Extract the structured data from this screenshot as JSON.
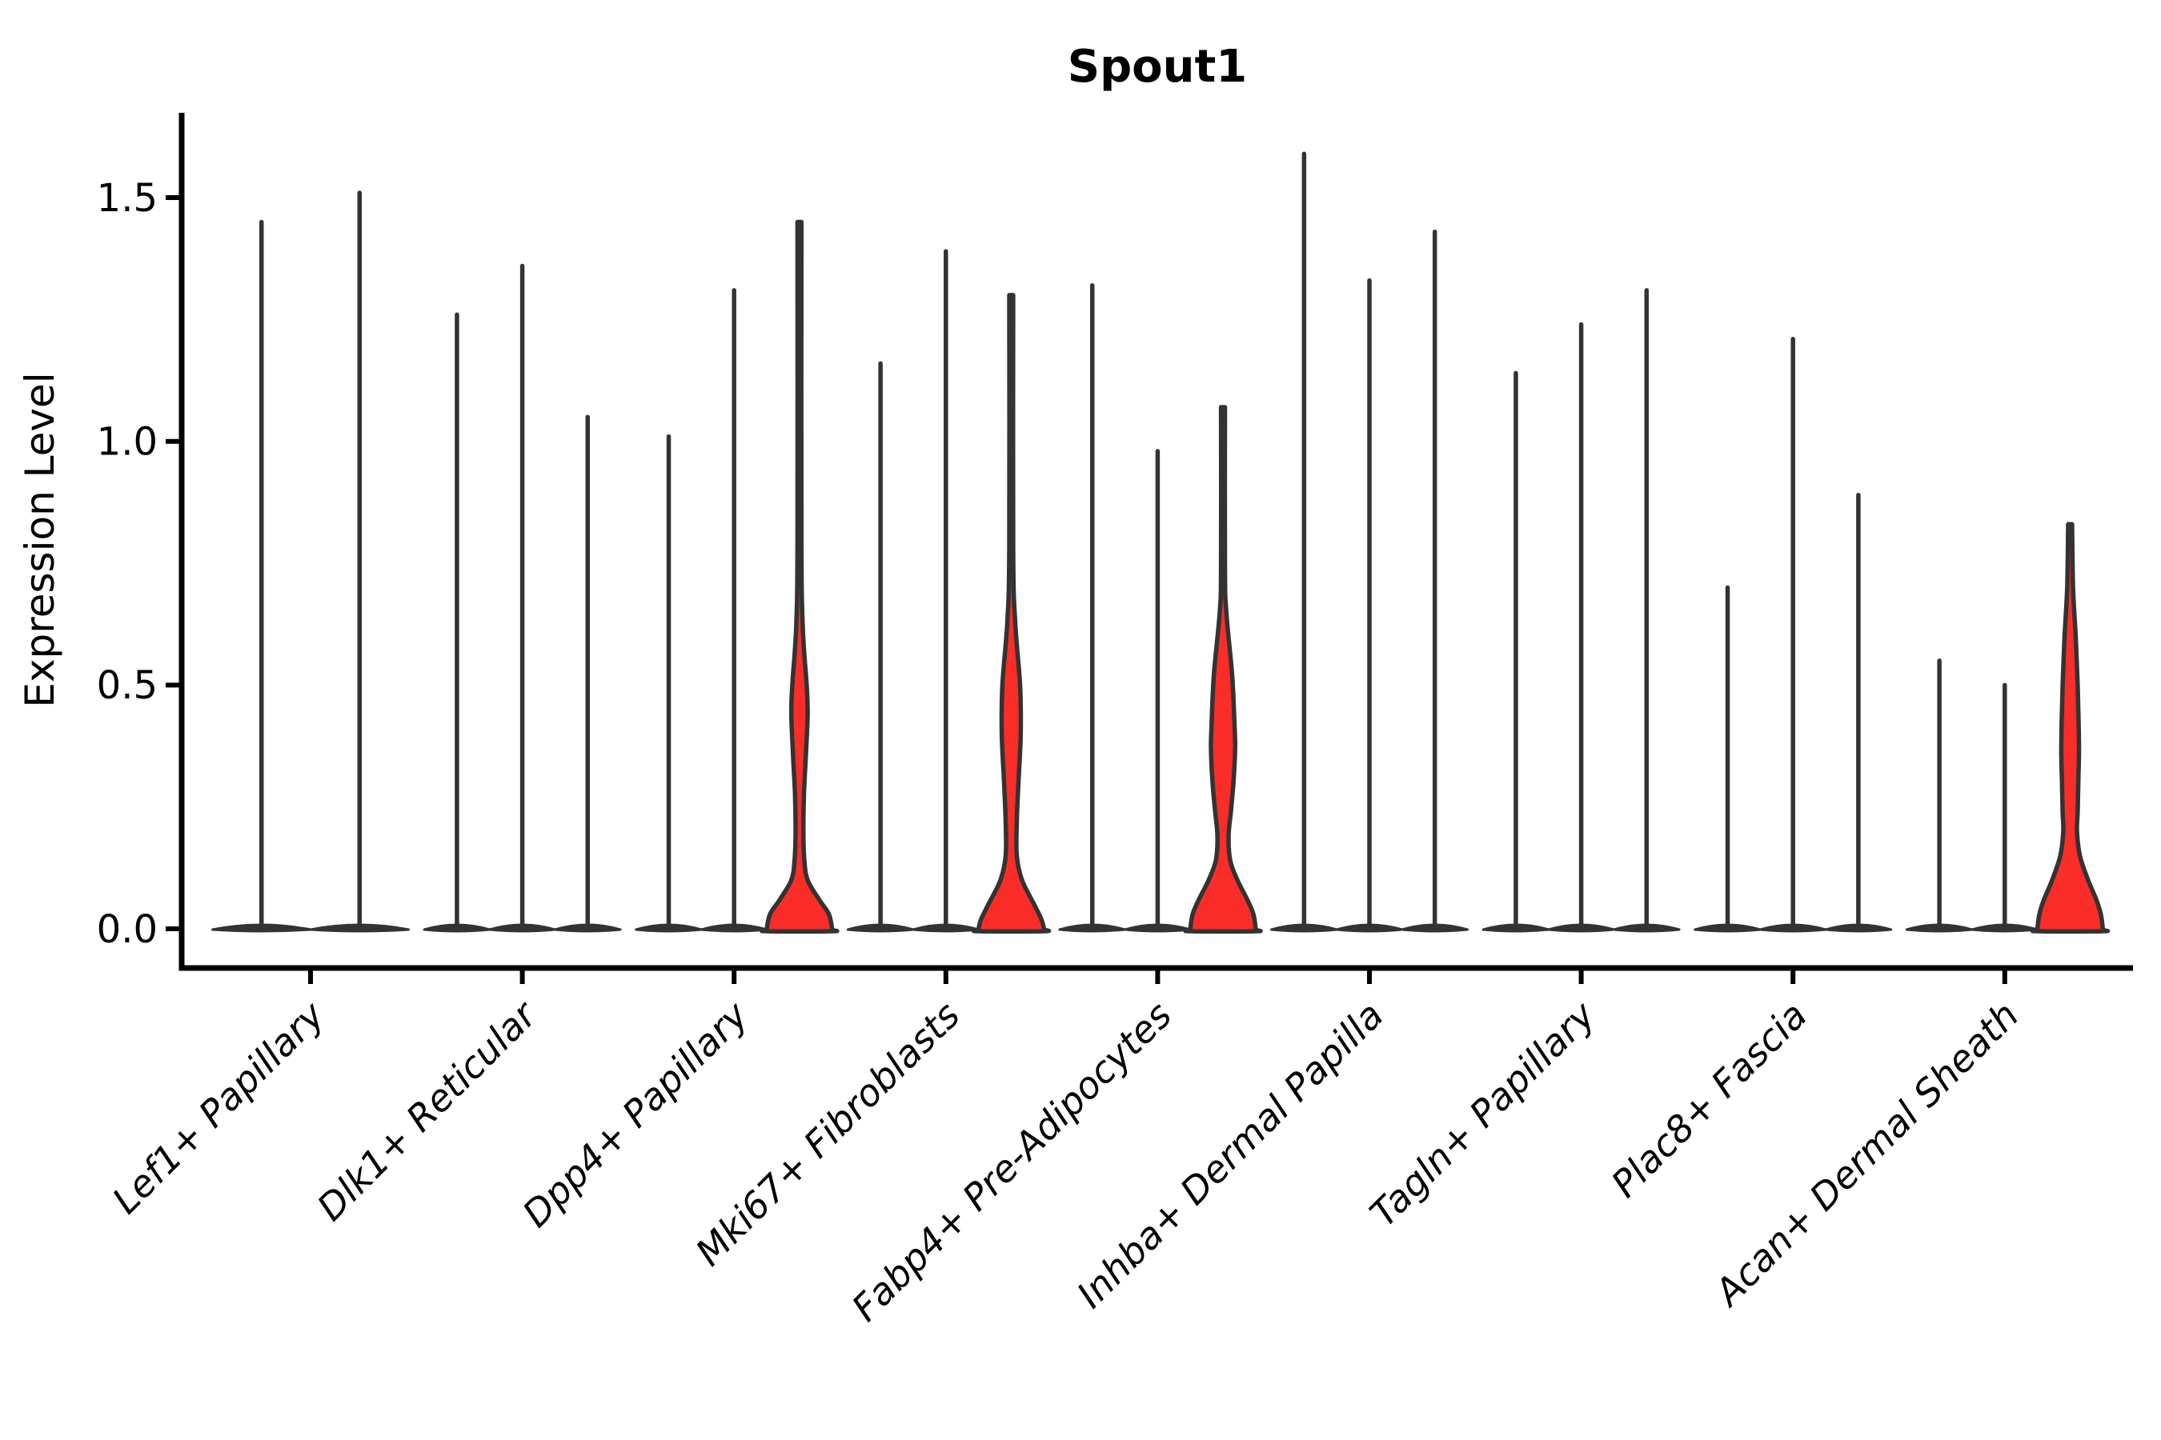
{
  "chart_data": {
    "type": "violin",
    "title": "Spout1",
    "ylabel": "Expression Level",
    "xlabel": "",
    "ylim": [
      0,
      1.674
    ],
    "yticks": [
      {
        "value": 0.0,
        "label": "0.0"
      },
      {
        "value": 0.5,
        "label": "0.5"
      },
      {
        "value": 1.0,
        "label": "1.0"
      },
      {
        "value": 1.5,
        "label": "1.5"
      }
    ],
    "grid": "off",
    "legend": "none",
    "categories": [
      "Lef1+ Papillary",
      "Dlk1+ Reticular",
      "Dpp4+ Papillary",
      "Mki67+ Fibroblasts",
      "Fabp4+ Pre-Adipocytes",
      "Inhba+ Dermal Papilla",
      "Tagln+ Papillary",
      "Plac8+ Fascia",
      "Acan+ Dermal Sheath"
    ],
    "groups": [
      {
        "category": "Lef1+ Papillary",
        "violins": [
          {
            "max": 1.45,
            "highlighted": false
          },
          {
            "max": 1.51,
            "highlighted": false
          }
        ]
      },
      {
        "category": "Dlk1+ Reticular",
        "violins": [
          {
            "max": 1.26,
            "highlighted": false
          },
          {
            "max": 1.36,
            "highlighted": false
          },
          {
            "max": 1.05,
            "highlighted": false
          }
        ]
      },
      {
        "category": "Dpp4+ Papillary",
        "violins": [
          {
            "max": 1.01,
            "highlighted": false
          },
          {
            "max": 1.31,
            "highlighted": false
          },
          {
            "max": 1.45,
            "highlighted": true,
            "profile": [
              [
                1.45,
                0.06
              ],
              [
                0.8,
                0.06
              ],
              [
                0.62,
                0.1
              ],
              [
                0.5,
                0.22
              ],
              [
                0.44,
                0.25
              ],
              [
                0.36,
                0.2
              ],
              [
                0.28,
                0.14
              ],
              [
                0.2,
                0.12
              ],
              [
                0.14,
                0.15
              ],
              [
                0.1,
                0.25
              ],
              [
                0.06,
                0.6
              ],
              [
                0.03,
                0.9
              ],
              [
                0.0,
                1.0
              ]
            ]
          }
        ]
      },
      {
        "category": "Mki67+ Fibroblasts",
        "violins": [
          {
            "max": 1.16,
            "highlighted": false
          },
          {
            "max": 1.39,
            "highlighted": false
          },
          {
            "max": 1.3,
            "highlighted": true,
            "profile": [
              [
                1.3,
                0.06
              ],
              [
                0.78,
                0.06
              ],
              [
                0.63,
                0.12
              ],
              [
                0.5,
                0.27
              ],
              [
                0.4,
                0.29
              ],
              [
                0.3,
                0.22
              ],
              [
                0.22,
                0.17
              ],
              [
                0.15,
                0.17
              ],
              [
                0.1,
                0.33
              ],
              [
                0.05,
                0.7
              ],
              [
                0.02,
                0.92
              ],
              [
                0.0,
                1.0
              ]
            ]
          }
        ]
      },
      {
        "category": "Fabp4+ Pre-Adipocytes",
        "violins": [
          {
            "max": 1.32,
            "highlighted": false
          },
          {
            "max": 0.98,
            "highlighted": false
          },
          {
            "max": 1.07,
            "highlighted": true,
            "profile": [
              [
                1.07,
                0.06
              ],
              [
                0.74,
                0.06
              ],
              [
                0.65,
                0.1
              ],
              [
                0.52,
                0.28
              ],
              [
                0.42,
                0.35
              ],
              [
                0.37,
                0.37
              ],
              [
                0.3,
                0.32
              ],
              [
                0.24,
                0.24
              ],
              [
                0.19,
                0.17
              ],
              [
                0.14,
                0.22
              ],
              [
                0.1,
                0.44
              ],
              [
                0.06,
                0.74
              ],
              [
                0.03,
                0.93
              ],
              [
                0.0,
                1.0
              ]
            ]
          }
        ]
      },
      {
        "category": "Inhba+ Dermal Papilla",
        "violins": [
          {
            "max": 1.59,
            "highlighted": false
          },
          {
            "max": 1.33,
            "highlighted": false
          },
          {
            "max": 1.43,
            "highlighted": false
          }
        ]
      },
      {
        "category": "Tagln+ Papillary",
        "violins": [
          {
            "max": 1.14,
            "highlighted": false
          },
          {
            "max": 1.24,
            "highlighted": false
          },
          {
            "max": 1.31,
            "highlighted": false
          }
        ]
      },
      {
        "category": "Plac8+ Fascia",
        "violins": [
          {
            "max": 0.7,
            "highlighted": false
          },
          {
            "max": 1.21,
            "highlighted": false
          },
          {
            "max": 0.89,
            "highlighted": false
          }
        ]
      },
      {
        "category": "Acan+ Dermal Sheath",
        "violins": [
          {
            "max": 0.55,
            "highlighted": false
          },
          {
            "max": 0.5,
            "highlighted": false
          },
          {
            "max": 0.83,
            "highlighted": true,
            "profile": [
              [
                0.83,
                0.06
              ],
              [
                0.7,
                0.09
              ],
              [
                0.6,
                0.17
              ],
              [
                0.5,
                0.23
              ],
              [
                0.42,
                0.26
              ],
              [
                0.36,
                0.27
              ],
              [
                0.3,
                0.25
              ],
              [
                0.24,
                0.23
              ],
              [
                0.2,
                0.21
              ],
              [
                0.15,
                0.3
              ],
              [
                0.1,
                0.55
              ],
              [
                0.06,
                0.8
              ],
              [
                0.03,
                0.94
              ],
              [
                0.0,
                1.0
              ]
            ]
          }
        ]
      }
    ],
    "colors": {
      "violin_stroke": "#333333",
      "highlight_fill": "#fa2d28",
      "axis": "#000000",
      "text": "#000000",
      "background": "#ffffff"
    }
  }
}
